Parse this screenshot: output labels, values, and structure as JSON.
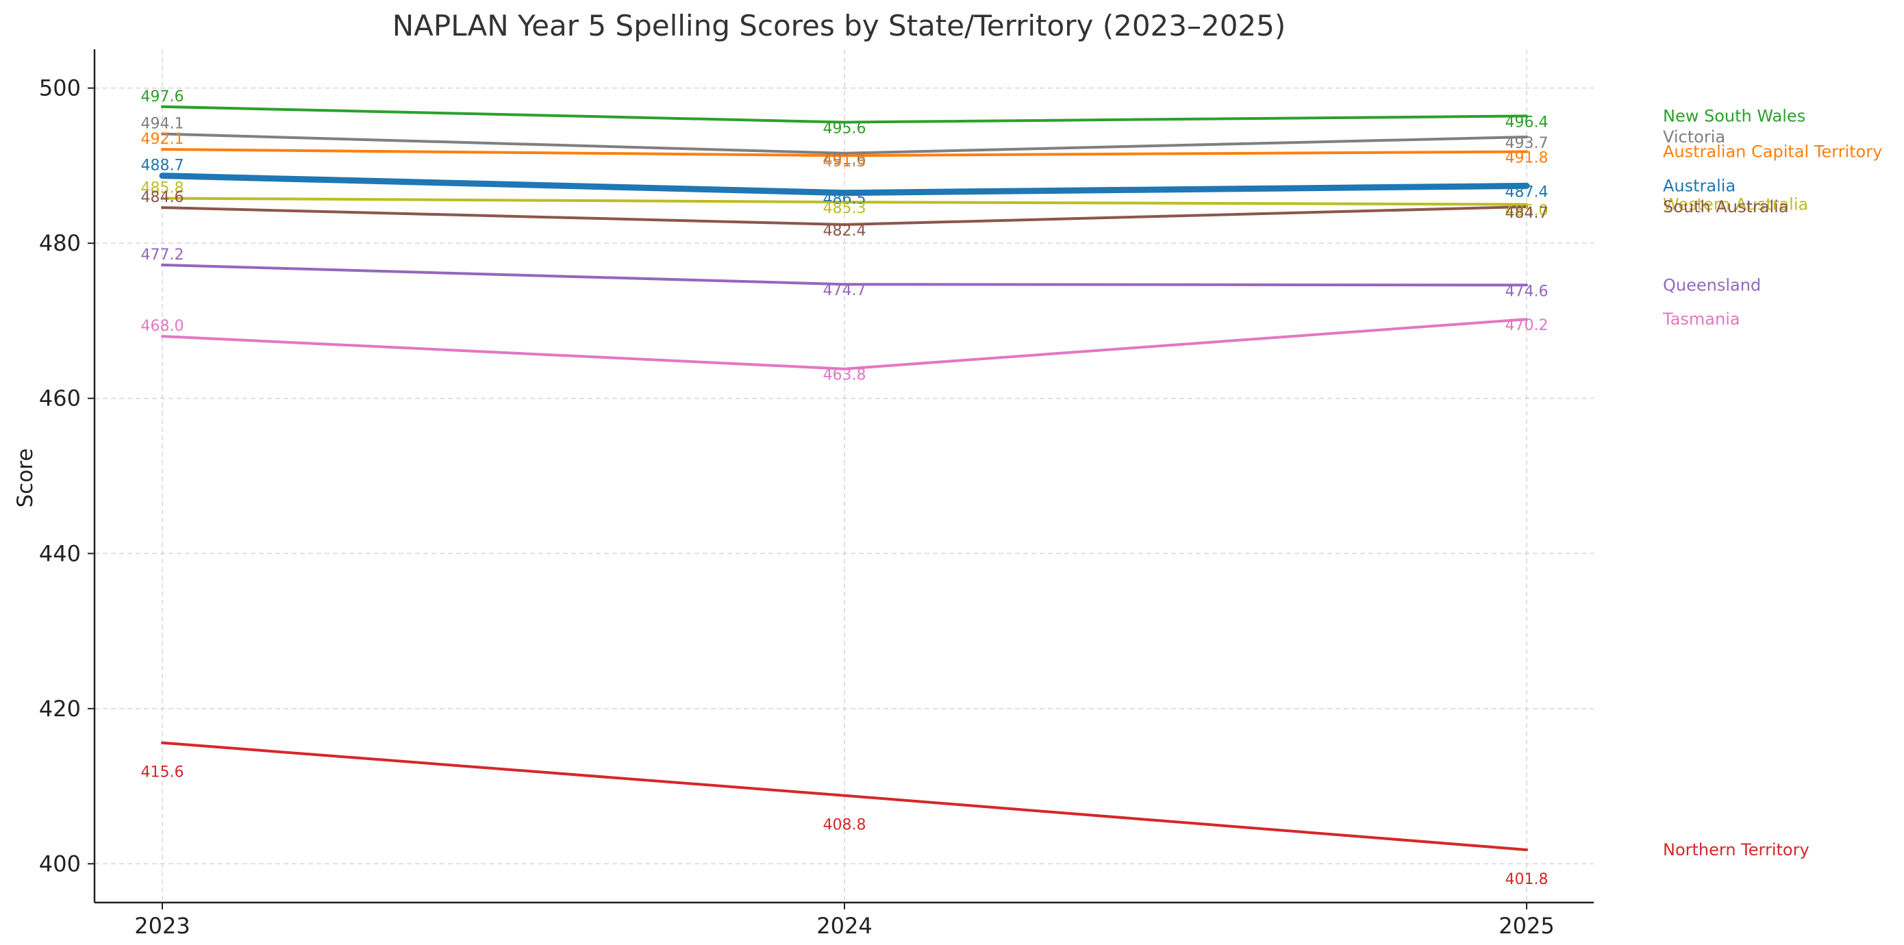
{
  "chart_data": {
    "type": "line",
    "title": "NAPLAN Year 5 Spelling Scores by State/Territory (2023–2025)",
    "xlabel": "",
    "ylabel": "Score",
    "x": [
      "2023",
      "2024",
      "2025"
    ],
    "ylim": [
      395,
      505
    ],
    "yticks": [
      400,
      420,
      440,
      460,
      480,
      500
    ],
    "grid": true,
    "legend_placement": "right",
    "series": [
      {
        "name": "New South Wales",
        "values": [
          497.6,
          495.6,
          496.4
        ],
        "labels": [
          "497.6",
          "495.6",
          "496.4"
        ],
        "color": "#2ca02c",
        "width": 4
      },
      {
        "name": "Victoria",
        "values": [
          494.1,
          491.6,
          493.7
        ],
        "labels": [
          "494.1",
          "491.6",
          "493.7"
        ],
        "color": "#7f7f7f",
        "width": 4
      },
      {
        "name": "Australian Capital Territory",
        "values": [
          492.1,
          491.3,
          491.8
        ],
        "labels": [
          "492.1",
          "491.3",
          "491.8"
        ],
        "color": "#ff7f0e",
        "width": 4
      },
      {
        "name": "Australia",
        "values": [
          488.7,
          486.5,
          487.4
        ],
        "labels": [
          "488.7",
          "486.5",
          "487.4"
        ],
        "color": "#1f77b4",
        "width": 9
      },
      {
        "name": "Western Australia",
        "values": [
          485.8,
          485.3,
          485.0
        ],
        "labels": [
          "485.8",
          "485.3",
          "485.0"
        ],
        "color": "#bcbd22",
        "width": 4
      },
      {
        "name": "South Australia",
        "values": [
          484.6,
          482.4,
          484.7
        ],
        "labels": [
          "484.6",
          "482.4",
          "484.7"
        ],
        "color": "#8c564b",
        "width": 4
      },
      {
        "name": "Queensland",
        "values": [
          477.2,
          474.7,
          474.6
        ],
        "labels": [
          "477.2",
          "474.7",
          "474.6"
        ],
        "color": "#9467bd",
        "width": 4
      },
      {
        "name": "Tasmania",
        "values": [
          468.0,
          463.8,
          470.2
        ],
        "labels": [
          "468.0",
          "463.8",
          "470.2"
        ],
        "color": "#e377c2",
        "width": 4
      },
      {
        "name": "Northern Territory",
        "values": [
          415.6,
          408.8,
          401.8
        ],
        "labels": [
          "415.6",
          "408.8",
          "401.8"
        ],
        "color": "#d62728",
        "width": 4
      }
    ]
  }
}
